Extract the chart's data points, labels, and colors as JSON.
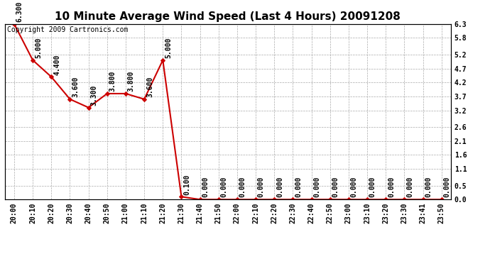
{
  "title": "10 Minute Average Wind Speed (Last 4 Hours) 20091208",
  "copyright_text": "Copyright 2009 Cartronics.com",
  "x_labels": [
    "20:00",
    "20:10",
    "20:20",
    "20:30",
    "20:40",
    "20:50",
    "21:00",
    "21:10",
    "21:20",
    "21:30",
    "21:40",
    "21:50",
    "22:00",
    "22:10",
    "22:20",
    "22:30",
    "22:40",
    "22:50",
    "23:00",
    "23:10",
    "23:20",
    "23:30",
    "23:41",
    "23:50"
  ],
  "y_values": [
    6.3,
    5.0,
    4.4,
    3.6,
    3.3,
    3.8,
    3.8,
    3.6,
    5.0,
    0.1,
    0.0,
    0.0,
    0.0,
    0.0,
    0.0,
    0.0,
    0.0,
    0.0,
    0.0,
    0.0,
    0.0,
    0.0,
    0.0,
    0.0
  ],
  "y_labels": [
    0.0,
    0.5,
    1.1,
    1.6,
    2.1,
    2.6,
    3.2,
    3.7,
    4.2,
    4.7,
    5.2,
    5.8,
    6.3
  ],
  "line_color": "#cc0000",
  "marker": "D",
  "background_color": "#ffffff",
  "grid_color": "#aaaaaa",
  "ylim": [
    0.0,
    6.3
  ],
  "title_fontsize": 11,
  "label_fontsize": 7,
  "annotation_fontsize": 7,
  "copyright_fontsize": 7
}
